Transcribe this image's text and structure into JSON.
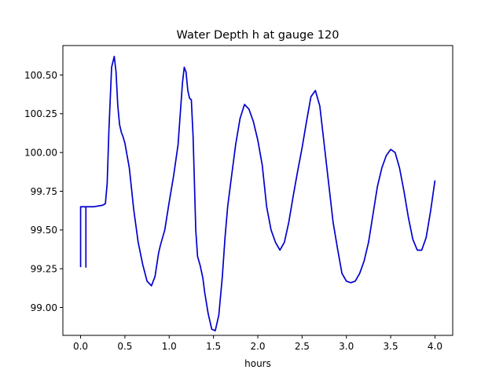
{
  "chart_data": {
    "type": "line",
    "title": "Water Depth h at gauge 120",
    "xlabel": "hours",
    "ylabel": "",
    "xlim": [
      -0.2,
      4.2
    ],
    "ylim": [
      98.82,
      100.69
    ],
    "xticks": [
      0.0,
      0.5,
      1.0,
      1.5,
      2.0,
      2.5,
      3.0,
      3.5,
      4.0
    ],
    "xtick_labels": [
      "0.0",
      "0.5",
      "1.0",
      "1.5",
      "2.0",
      "2.5",
      "3.0",
      "3.5",
      "4.0"
    ],
    "yticks": [
      99.0,
      99.25,
      99.5,
      99.75,
      100.0,
      100.25,
      100.5
    ],
    "ytick_labels": [
      "99.00",
      "99.25",
      "99.50",
      "99.75",
      "100.00",
      "100.25",
      "100.50"
    ],
    "grid": false,
    "legend": "none",
    "series": [
      {
        "color": "#0000cc",
        "x": [
          0.0,
          0.0,
          0.0,
          0.06,
          0.06,
          0.06,
          0.1,
          0.15,
          0.2,
          0.25,
          0.28,
          0.3,
          0.32,
          0.35,
          0.38,
          0.4,
          0.42,
          0.44,
          0.46,
          0.48,
          0.5,
          0.55,
          0.6,
          0.65,
          0.7,
          0.75,
          0.8,
          0.84,
          0.88,
          0.9,
          0.95,
          1.0,
          1.05,
          1.1,
          1.15,
          1.17,
          1.19,
          1.21,
          1.23,
          1.25,
          1.27,
          1.29,
          1.3,
          1.32,
          1.35,
          1.38,
          1.4,
          1.44,
          1.48,
          1.52,
          1.56,
          1.6,
          1.63,
          1.66,
          1.7,
          1.75,
          1.8,
          1.85,
          1.9,
          1.95,
          2.0,
          2.05,
          2.1,
          2.15,
          2.2,
          2.25,
          2.3,
          2.35,
          2.4,
          2.45,
          2.5,
          2.55,
          2.6,
          2.65,
          2.7,
          2.75,
          2.8,
          2.85,
          2.9,
          2.95,
          3.0,
          3.05,
          3.1,
          3.15,
          3.2,
          3.25,
          3.3,
          3.35,
          3.4,
          3.45,
          3.5,
          3.55,
          3.6,
          3.65,
          3.7,
          3.75,
          3.8,
          3.85,
          3.9,
          3.95,
          4.0
        ],
        "y": [
          99.26,
          99.65,
          99.65,
          99.65,
          99.26,
          99.65,
          99.65,
          99.65,
          99.655,
          99.66,
          99.67,
          99.8,
          100.15,
          100.55,
          100.62,
          100.52,
          100.3,
          100.18,
          100.13,
          100.1,
          100.06,
          99.9,
          99.63,
          99.42,
          99.28,
          99.17,
          99.14,
          99.2,
          99.35,
          99.4,
          99.5,
          99.68,
          99.85,
          100.05,
          100.45,
          100.55,
          100.52,
          100.4,
          100.35,
          100.34,
          100.1,
          99.7,
          99.5,
          99.33,
          99.27,
          99.19,
          99.1,
          98.96,
          98.86,
          98.85,
          98.95,
          99.2,
          99.45,
          99.65,
          99.83,
          100.05,
          100.22,
          100.31,
          100.28,
          100.2,
          100.08,
          99.92,
          99.65,
          99.5,
          99.42,
          99.37,
          99.42,
          99.55,
          99.72,
          99.88,
          100.03,
          100.2,
          100.36,
          100.4,
          100.3,
          100.05,
          99.8,
          99.55,
          99.38,
          99.22,
          99.17,
          99.16,
          99.17,
          99.22,
          99.3,
          99.42,
          99.6,
          99.78,
          99.9,
          99.98,
          100.02,
          100.0,
          99.9,
          99.75,
          99.58,
          99.44,
          99.37,
          99.37,
          99.45,
          99.62,
          99.82
        ]
      }
    ]
  }
}
